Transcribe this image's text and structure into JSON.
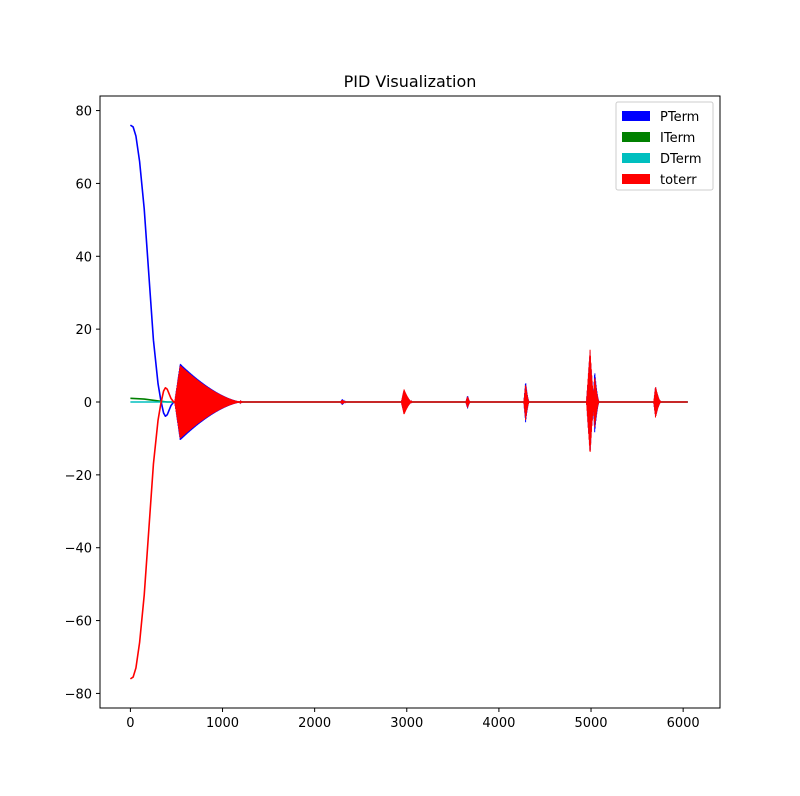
{
  "chart_data": {
    "type": "line",
    "title": "PID Visualization",
    "xlabel": "",
    "ylabel": "",
    "xlim": [
      -330,
      6400
    ],
    "ylim": [
      -84,
      84
    ],
    "xticks": [
      0,
      1000,
      2000,
      3000,
      4000,
      5000,
      6000
    ],
    "yticks": [
      -80,
      -60,
      -40,
      -20,
      0,
      20,
      40,
      60,
      80
    ],
    "xtick_labels": [
      "0",
      "1000",
      "2000",
      "3000",
      "4000",
      "5000",
      "6000"
    ],
    "ytick_labels": [
      "−80",
      "−60",
      "−40",
      "−20",
      "0",
      "20",
      "40",
      "60",
      "80"
    ],
    "grid": false,
    "legend_position": "top-right",
    "series": [
      {
        "name": "PTerm",
        "color": "#0000ff",
        "points": [
          [
            0,
            76
          ],
          [
            30,
            75.5
          ],
          [
            60,
            73
          ],
          [
            100,
            66
          ],
          [
            150,
            53
          ],
          [
            200,
            35
          ],
          [
            250,
            17
          ],
          [
            300,
            5
          ],
          [
            330,
            0.5
          ],
          [
            360,
            -3
          ],
          [
            380,
            -3.9
          ],
          [
            400,
            -3.5
          ],
          [
            440,
            -1
          ],
          [
            470,
            0
          ]
        ],
        "oscillations": [
          {
            "start": 480,
            "peak_at": 540,
            "end": 1230,
            "amplitude": 10.5
          },
          {
            "start": 2280,
            "peak_at": 2300,
            "end": 2340,
            "amplitude": 0.8
          },
          {
            "start": 2940,
            "peak_at": 2970,
            "end": 3060,
            "amplitude": 3.2
          },
          {
            "start": 3640,
            "peak_at": 3660,
            "end": 3690,
            "amplitude": 1.8
          },
          {
            "start": 4270,
            "peak_at": 4290,
            "end": 4330,
            "amplitude": 5.6
          },
          {
            "start": 4950,
            "peak_at": 4990,
            "end": 5040,
            "amplitude": 14
          },
          {
            "start": 5020,
            "peak_at": 5040,
            "end": 5090,
            "amplitude": 8.4
          },
          {
            "start": 5680,
            "peak_at": 5700,
            "end": 5760,
            "amplitude": 4.2
          }
        ],
        "x_end": 6050
      },
      {
        "name": "ITerm",
        "color": "#008000",
        "points": [
          [
            0,
            1
          ],
          [
            150,
            0.8
          ],
          [
            300,
            0.3
          ],
          [
            400,
            0
          ],
          [
            6050,
            0
          ]
        ],
        "oscillations": [],
        "x_end": 6050
      },
      {
        "name": "DTerm",
        "color": "#00bfbf",
        "points": [
          [
            0,
            0
          ],
          [
            6050,
            0
          ]
        ],
        "oscillations": [],
        "x_end": 6050
      },
      {
        "name": "toterr",
        "color": "#ff0000",
        "points": [
          [
            0,
            -76
          ],
          [
            30,
            -75.5
          ],
          [
            60,
            -73
          ],
          [
            100,
            -66
          ],
          [
            150,
            -53
          ],
          [
            200,
            -35
          ],
          [
            250,
            -17
          ],
          [
            300,
            -5
          ],
          [
            330,
            -0.5
          ],
          [
            360,
            3
          ],
          [
            380,
            3.9
          ],
          [
            400,
            3.5
          ],
          [
            440,
            1
          ],
          [
            470,
            0
          ]
        ],
        "oscillations": [
          {
            "start": 480,
            "peak_at": 540,
            "end": 1230,
            "amplitude": 10
          },
          {
            "start": 2280,
            "peak_at": 2300,
            "end": 2340,
            "amplitude": 0.6
          },
          {
            "start": 2940,
            "peak_at": 2970,
            "end": 3060,
            "amplitude": 3.5
          },
          {
            "start": 3640,
            "peak_at": 3660,
            "end": 3690,
            "amplitude": 1.6
          },
          {
            "start": 4270,
            "peak_at": 4290,
            "end": 4330,
            "amplitude": 5
          },
          {
            "start": 4950,
            "peak_at": 4990,
            "end": 5040,
            "amplitude": 14.5
          },
          {
            "start": 5020,
            "peak_at": 5040,
            "end": 5090,
            "amplitude": 7
          },
          {
            "start": 5680,
            "peak_at": 5700,
            "end": 5760,
            "amplitude": 4.3
          }
        ],
        "x_end": 6050
      }
    ]
  }
}
